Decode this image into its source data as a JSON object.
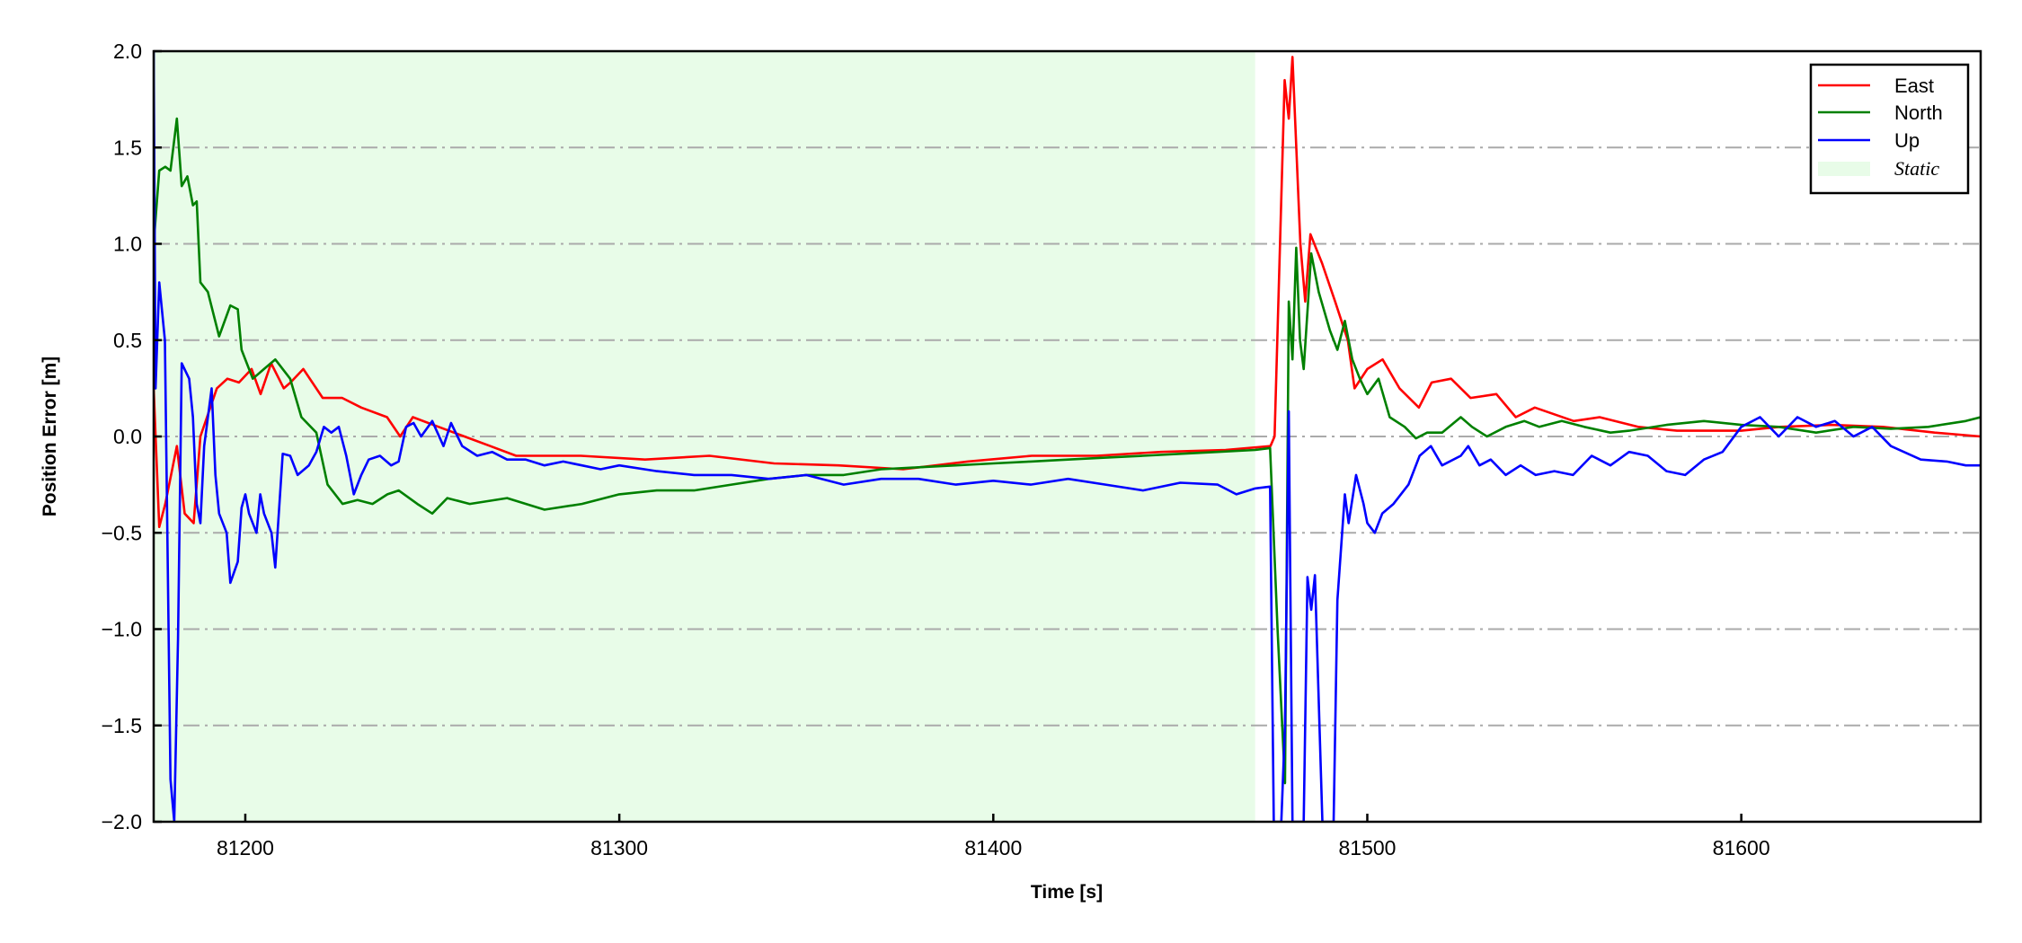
{
  "chart_data": {
    "type": "line",
    "title": "",
    "xlabel": "Time [s]",
    "ylabel": "Position Error [m]",
    "xlim": [
      81175.5,
      81664
    ],
    "ylim": [
      -2.0,
      2.0
    ],
    "xticks": [
      81200,
      81300,
      81400,
      81500,
      81600
    ],
    "xtick_labels": [
      "81200",
      "81300",
      "81400",
      "81500",
      "81600"
    ],
    "yticks": [
      2.0,
      1.5,
      1.0,
      0.5,
      0.0,
      -0.5,
      -1.0,
      -1.5,
      -2.0
    ],
    "ytick_labels": [
      "2.0",
      "1.5",
      "1.0",
      "0.5",
      "0.0",
      "−0.5",
      "−1.0",
      "−1.5",
      "−2.0"
    ],
    "grid": "horizontal dash-dot",
    "legend_position": "top-right",
    "shaded_region": {
      "name": "Static",
      "x": [
        81175.5,
        81470
      ],
      "color": "#e8fce8"
    },
    "series": [
      {
        "name": "East",
        "color": "#ff0000",
        "x": [
          81175.5,
          81177,
          81178.6,
          81181.7,
          81183.8,
          81186.2,
          81188,
          81192.4,
          81195.2,
          81198.3,
          81201.7,
          81204.1,
          81206.9,
          81210.3,
          81212.1,
          81215.5,
          81220.7,
          81225.9,
          81231,
          81237.9,
          81241.4,
          81244.8,
          81251.7,
          81258.6,
          81265.5,
          81272.4,
          81289.7,
          81306.9,
          81324.1,
          81341.4,
          81358.6,
          81375.9,
          81393.1,
          81410.3,
          81427.6,
          81444.8,
          81462.1,
          81474.1,
          81475.2,
          81477.9,
          81479,
          81480,
          81482.1,
          81483.4,
          81484.8,
          81487.9,
          81491.4,
          81494.8,
          81496.6,
          81500,
          81504.1,
          81508.6,
          81513.8,
          81517.2,
          81522.4,
          81527.6,
          81534.5,
          81539.7,
          81544.8,
          81555.2,
          81562.1,
          81572.4,
          81582.8,
          81600,
          81610.3,
          81624.1,
          81637.9,
          81651.7,
          81664
        ],
        "y": [
          0.25,
          -0.47,
          -0.35,
          -0.05,
          -0.4,
          -0.45,
          0.0,
          0.25,
          0.3,
          0.28,
          0.35,
          0.22,
          0.38,
          0.25,
          0.28,
          0.35,
          0.2,
          0.2,
          0.15,
          0.1,
          0.0,
          0.1,
          0.05,
          0.0,
          -0.05,
          -0.1,
          -0.1,
          -0.12,
          -0.1,
          -0.14,
          -0.15,
          -0.17,
          -0.13,
          -0.1,
          -0.1,
          -0.08,
          -0.07,
          -0.05,
          0.0,
          1.85,
          1.65,
          1.97,
          1.0,
          0.7,
          1.05,
          0.9,
          0.7,
          0.5,
          0.25,
          0.35,
          0.4,
          0.25,
          0.15,
          0.28,
          0.3,
          0.2,
          0.22,
          0.1,
          0.15,
          0.08,
          0.1,
          0.05,
          0.03,
          0.03,
          0.05,
          0.06,
          0.05,
          0.02,
          0.0
        ]
      },
      {
        "name": "North",
        "color": "#008000",
        "x": [
          81175.5,
          81177,
          81178.6,
          81180,
          81181.7,
          81183,
          81184.5,
          81186,
          81187,
          81188,
          81190,
          81193,
          81196,
          81198,
          81199,
          81202,
          81205,
          81208,
          81212,
          81215,
          81219,
          81222,
          81226,
          81230,
          81234,
          81238,
          81241,
          81246,
          81250,
          81254,
          81260,
          81270,
          81280,
          81290,
          81300,
          81310,
          81320,
          81330,
          81340,
          81350,
          81360,
          81370,
          81380,
          81390,
          81400,
          81410,
          81420,
          81430,
          81440,
          81450,
          81460,
          81470,
          81474,
          81476,
          81478,
          81479,
          81480,
          81481,
          81482,
          81483,
          81485,
          81487,
          81490,
          81492,
          81494,
          81496,
          81498,
          81500,
          81503,
          81506,
          81510,
          81513,
          81516,
          81520,
          81525,
          81528,
          81532,
          81537,
          81542,
          81546,
          81552,
          81558,
          81565,
          81570,
          81580,
          81590,
          81600,
          81610,
          81620,
          81630,
          81640,
          81650,
          81660,
          81664
        ],
        "y": [
          1.0,
          1.38,
          1.4,
          1.38,
          1.65,
          1.3,
          1.35,
          1.2,
          1.22,
          0.8,
          0.75,
          0.52,
          0.68,
          0.66,
          0.45,
          0.3,
          0.35,
          0.4,
          0.3,
          0.1,
          0.02,
          -0.25,
          -0.35,
          -0.33,
          -0.35,
          -0.3,
          -0.28,
          -0.35,
          -0.4,
          -0.32,
          -0.35,
          -0.32,
          -0.38,
          -0.35,
          -0.3,
          -0.28,
          -0.28,
          -0.25,
          -0.22,
          -0.2,
          -0.2,
          -0.17,
          -0.16,
          -0.15,
          -0.14,
          -0.13,
          -0.12,
          -0.11,
          -0.1,
          -0.09,
          -0.08,
          -0.07,
          -0.06,
          -1.0,
          -1.8,
          0.7,
          0.4,
          0.98,
          0.5,
          0.35,
          0.95,
          0.75,
          0.55,
          0.45,
          0.6,
          0.4,
          0.3,
          0.22,
          0.3,
          0.1,
          0.05,
          -0.01,
          0.02,
          0.02,
          0.1,
          0.05,
          0.0,
          0.05,
          0.08,
          0.05,
          0.08,
          0.05,
          0.02,
          0.03,
          0.06,
          0.08,
          0.06,
          0.05,
          0.02,
          0.05,
          0.04,
          0.05,
          0.08,
          0.1
        ]
      },
      {
        "name": "Up",
        "color": "#0000ff",
        "x": [
          81175.5,
          81176,
          81177,
          81178.5,
          81180,
          81181,
          81182,
          81183,
          81185,
          81186,
          81187,
          81188,
          81189,
          81191,
          81192,
          81193,
          81195,
          81196,
          81198,
          81199,
          81200,
          81201,
          81203,
          81204,
          81205,
          81207,
          81208,
          81210,
          81212,
          81214,
          81217,
          81219,
          81221,
          81223,
          81225,
          81227,
          81229,
          81231,
          81233,
          81236,
          81239,
          81241,
          81243,
          81245,
          81247,
          81250,
          81253,
          81255,
          81258,
          81262,
          81266,
          81270,
          81275,
          81280,
          81285,
          81290,
          81295,
          81300,
          81310,
          81320,
          81330,
          81340,
          81350,
          81360,
          81370,
          81380,
          81390,
          81400,
          81410,
          81420,
          81430,
          81440,
          81450,
          81460,
          81465,
          81470,
          81474,
          81475,
          81477,
          81478,
          81479,
          81480,
          81483,
          81484,
          81485,
          81486,
          81488,
          81491,
          81492,
          81494,
          81495,
          81497,
          81499,
          81500,
          81502,
          81504,
          81507,
          81511,
          81514,
          81517,
          81520,
          81525,
          81527,
          81530,
          81533,
          81537,
          81541,
          81545,
          81550,
          81555,
          81560,
          81565,
          81570,
          81575,
          81580,
          81585,
          81590,
          81595,
          81600,
          81605,
          81610,
          81615,
          81620,
          81625,
          81630,
          81635,
          81640,
          81648,
          81655,
          81660,
          81664
        ],
        "y": [
          2.0,
          0.25,
          0.8,
          0.5,
          -1.78,
          -2.0,
          -1.05,
          0.38,
          0.3,
          0.1,
          -0.35,
          -0.45,
          -0.05,
          0.25,
          -0.2,
          -0.4,
          -0.5,
          -0.76,
          -0.65,
          -0.37,
          -0.3,
          -0.4,
          -0.5,
          -0.3,
          -0.4,
          -0.5,
          -0.68,
          -0.09,
          -0.1,
          -0.2,
          -0.15,
          -0.08,
          0.05,
          0.02,
          0.05,
          -0.1,
          -0.3,
          -0.2,
          -0.12,
          -0.1,
          -0.15,
          -0.13,
          0.05,
          0.07,
          0.0,
          0.08,
          -0.05,
          0.07,
          -0.05,
          -0.1,
          -0.08,
          -0.12,
          -0.12,
          -0.15,
          -0.13,
          -0.15,
          -0.17,
          -0.15,
          -0.18,
          -0.2,
          -0.2,
          -0.22,
          -0.2,
          -0.25,
          -0.22,
          -0.22,
          -0.25,
          -0.23,
          -0.25,
          -0.22,
          -0.25,
          -0.28,
          -0.24,
          -0.25,
          -0.3,
          -0.27,
          -0.26,
          -2.0,
          -2.0,
          -1.5,
          0.13,
          -2.0,
          -2.0,
          -0.73,
          -0.9,
          -0.72,
          -2.0,
          -2.0,
          -0.85,
          -0.3,
          -0.45,
          -0.2,
          -0.35,
          -0.45,
          -0.5,
          -0.4,
          -0.35,
          -0.25,
          -0.1,
          -0.05,
          -0.15,
          -0.1,
          -0.05,
          -0.15,
          -0.12,
          -0.2,
          -0.15,
          -0.2,
          -0.18,
          -0.2,
          -0.1,
          -0.15,
          -0.08,
          -0.1,
          -0.18,
          -0.2,
          -0.12,
          -0.08,
          0.05,
          0.1,
          0.0,
          0.1,
          0.05,
          0.08,
          0.0,
          0.05,
          -0.05,
          -0.12,
          -0.13,
          -0.15,
          -0.15
        ]
      }
    ]
  }
}
